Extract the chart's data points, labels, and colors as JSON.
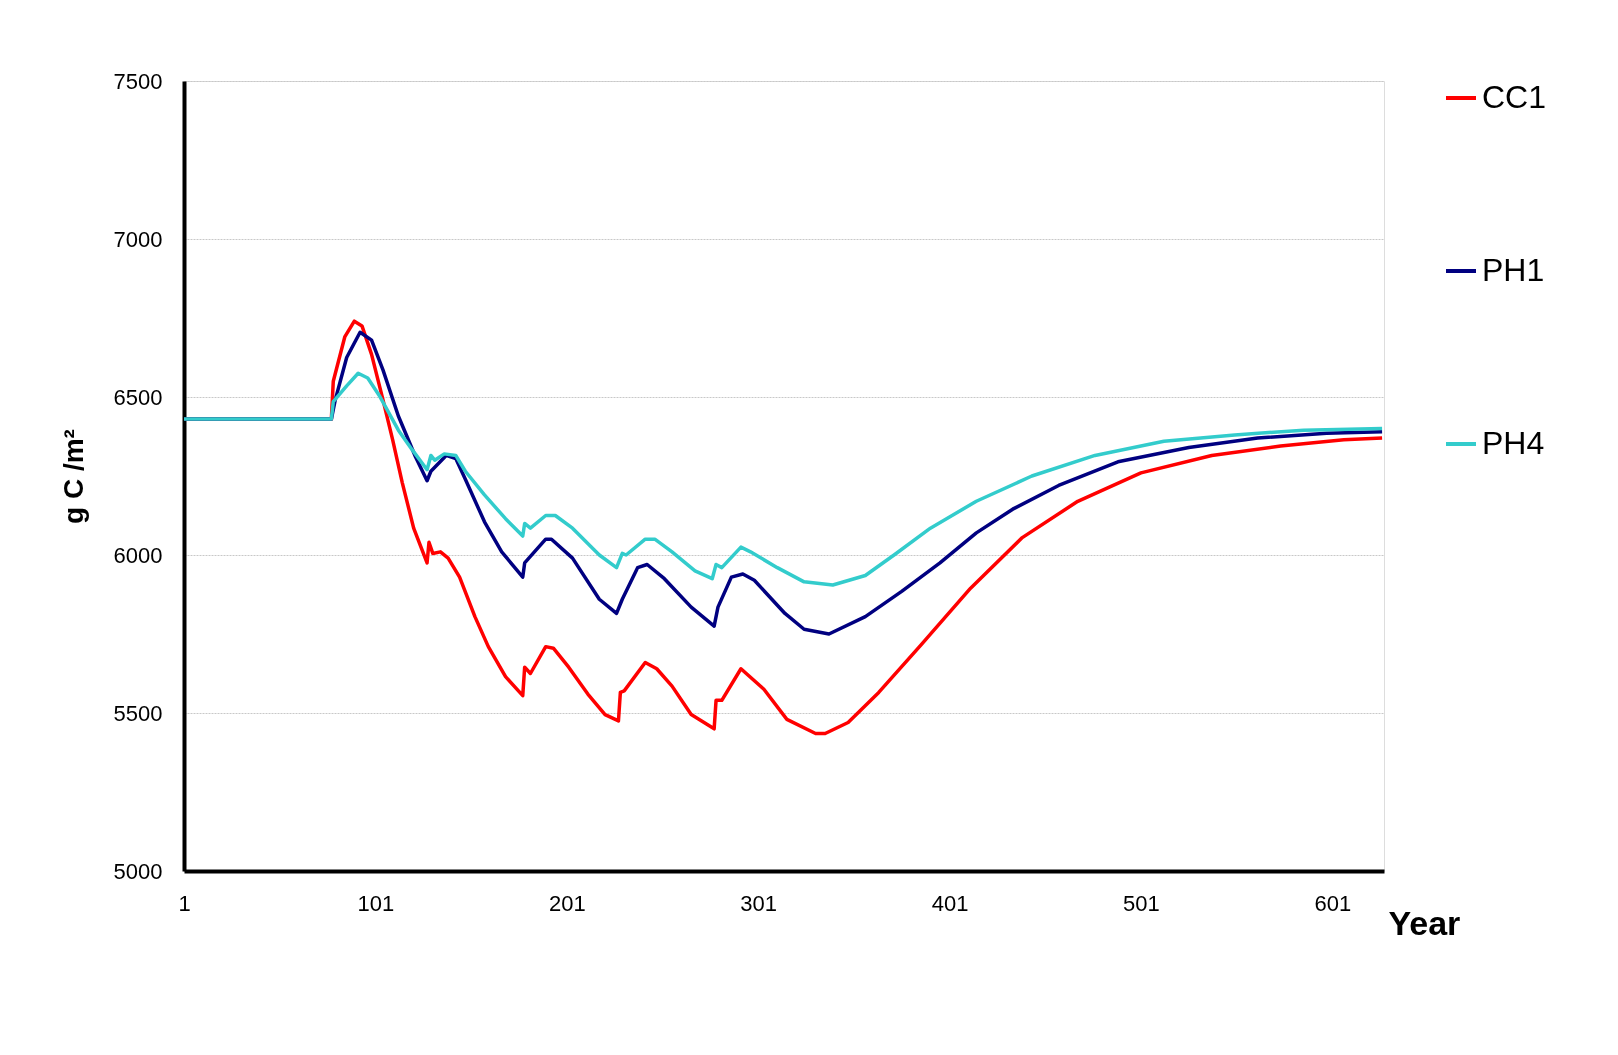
{
  "chart_data": {
    "type": "line",
    "xlabel": "Year",
    "ylabel": "g C /m²",
    "xlim": [
      1,
      628
    ],
    "ylim": [
      5000,
      7500
    ],
    "xticks": [
      1,
      101,
      201,
      301,
      401,
      501,
      601
    ],
    "yticks": [
      5000,
      5500,
      6000,
      6500,
      7000,
      7500
    ],
    "grid": "y",
    "legend": "right",
    "line_style": "solid",
    "series": [
      {
        "name": "CC1",
        "color": "#ff0000",
        "x": [
          1,
          78,
          79,
          85,
          90,
          94,
          99,
          105,
          110,
          115,
          121,
          128,
          129,
          131,
          135,
          139,
          145,
          153,
          160,
          169,
          178,
          179,
          182,
          190,
          194,
          202,
          212,
          221,
          228,
          229,
          231,
          242,
          248,
          256,
          266,
          278,
          279,
          282,
          292,
          304,
          316,
          331,
          336,
          348,
          364,
          386,
          412,
          439,
          468,
          501,
          538,
          574,
          607,
          627
        ],
        "values": [
          6430,
          6430,
          6550,
          6690,
          6740,
          6725,
          6635,
          6490,
          6365,
          6230,
          6085,
          5975,
          6040,
          6005,
          6010,
          5990,
          5930,
          5805,
          5710,
          5615,
          5555,
          5645,
          5625,
          5710,
          5705,
          5645,
          5560,
          5495,
          5475,
          5565,
          5570,
          5660,
          5640,
          5585,
          5495,
          5450,
          5540,
          5540,
          5640,
          5575,
          5480,
          5435,
          5435,
          5470,
          5565,
          5715,
          5895,
          6055,
          6170,
          6260,
          6315,
          6345,
          6365,
          6370
        ]
      },
      {
        "name": "PH1",
        "color": "#000080",
        "x": [
          1,
          78,
          80,
          86,
          93,
          99,
          105,
          113,
          122,
          128,
          130,
          138,
          143,
          148,
          158,
          167,
          178,
          179,
          190,
          193,
          204,
          218,
          227,
          230,
          238,
          243,
          252,
          266,
          278,
          280,
          287,
          293,
          299,
          315,
          325,
          338,
          357,
          376,
          396,
          415,
          434,
          458,
          489,
          526,
          562,
          598,
          627
        ],
        "values": [
          6430,
          6430,
          6490,
          6625,
          6705,
          6680,
          6585,
          6440,
          6310,
          6235,
          6265,
          6315,
          6305,
          6240,
          6105,
          6010,
          5930,
          5975,
          6050,
          6050,
          5990,
          5860,
          5815,
          5860,
          5960,
          5970,
          5925,
          5835,
          5775,
          5835,
          5930,
          5940,
          5920,
          5815,
          5765,
          5750,
          5805,
          5885,
          5975,
          6070,
          6145,
          6220,
          6295,
          6340,
          6370,
          6385,
          6390
        ]
      },
      {
        "name": "PH4",
        "color": "#33cccc",
        "x": [
          1,
          78,
          79,
          86,
          92,
          97,
          103,
          113,
          120,
          128,
          130,
          132,
          137,
          143,
          148,
          158,
          169,
          178,
          179,
          182,
          190,
          195,
          204,
          218,
          227,
          230,
          232,
          242,
          247,
          256,
          268,
          277,
          279,
          282,
          292,
          297,
          311,
          325,
          340,
          357,
          372,
          391,
          415,
          444,
          477,
          513,
          550,
          586,
          627
        ],
        "values": [
          6430,
          6430,
          6485,
          6535,
          6575,
          6560,
          6505,
          6395,
          6335,
          6270,
          6315,
          6300,
          6320,
          6315,
          6265,
          6190,
          6115,
          6060,
          6100,
          6085,
          6125,
          6125,
          6085,
          6000,
          5960,
          6005,
          6000,
          6050,
          6050,
          6010,
          5950,
          5925,
          5970,
          5960,
          6025,
          6010,
          5960,
          5915,
          5905,
          5935,
          6000,
          6085,
          6170,
          6250,
          6315,
          6360,
          6380,
          6395,
          6400
        ]
      }
    ]
  }
}
